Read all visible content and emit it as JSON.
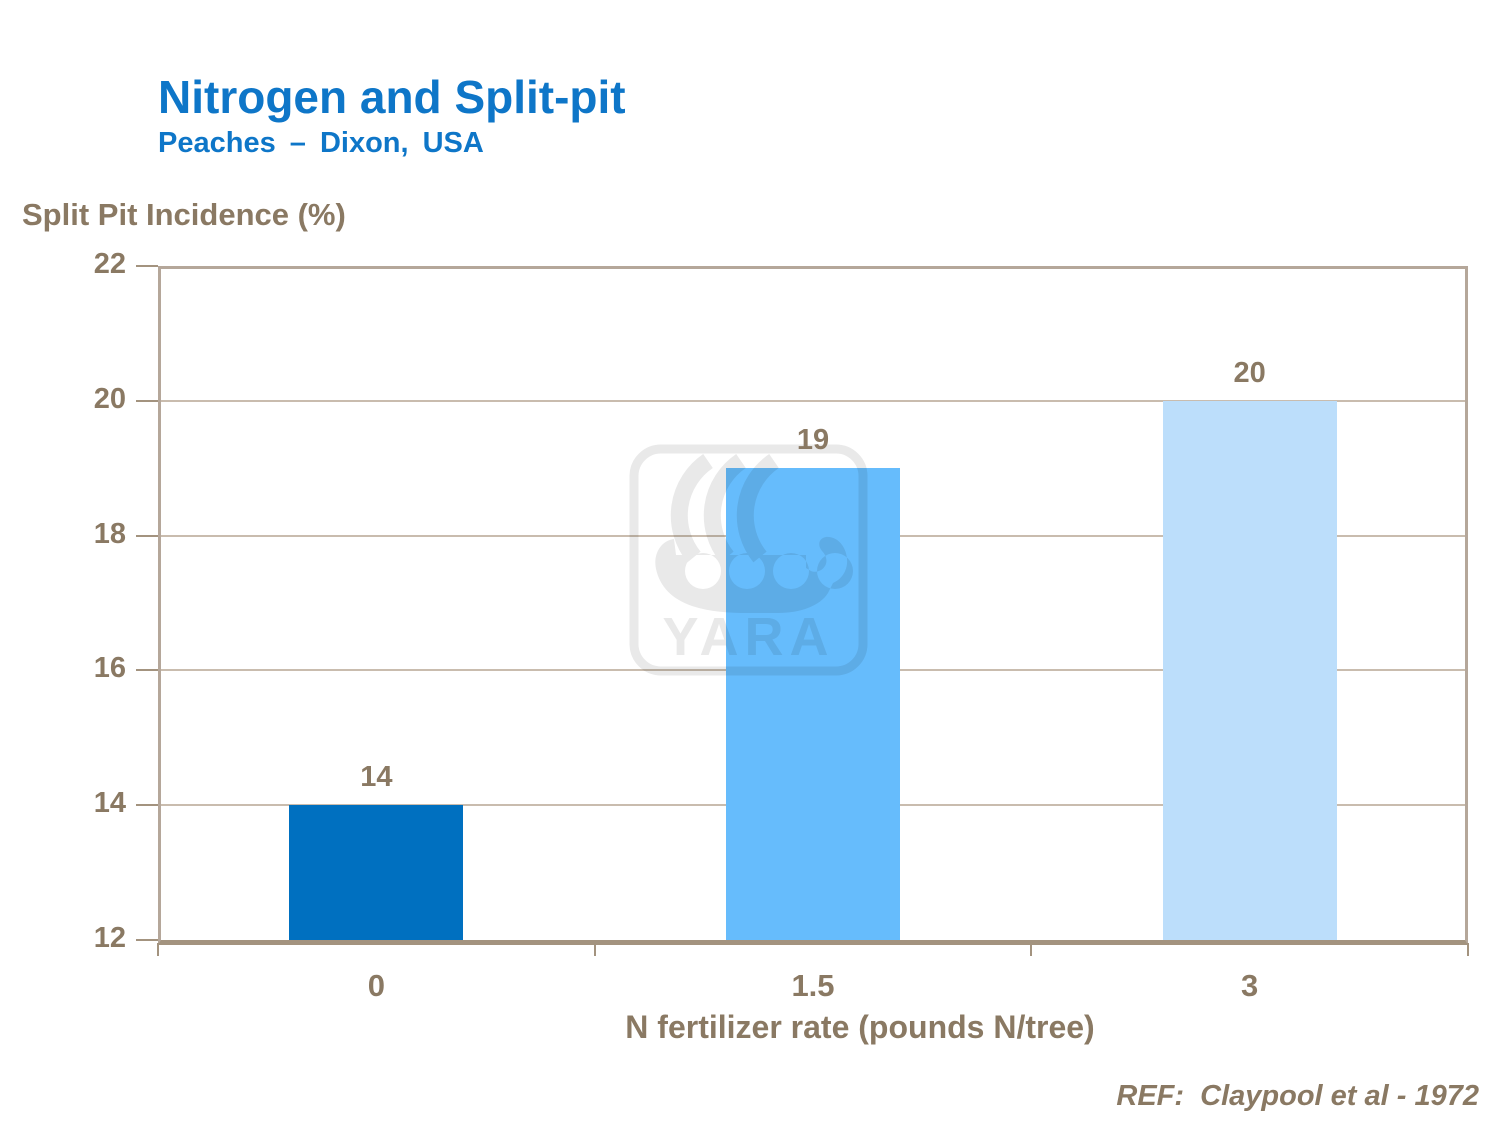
{
  "slide": {
    "title": "Nitrogen and Split-pit",
    "subtitle": "Peaches – Dixon, USA",
    "reference": "REF:  Claypool et al - 1972"
  },
  "colors": {
    "title_blue": "#0E76C8",
    "text_brown": "#8A7963",
    "frame": "#B5A79A",
    "gridline": "#C9BCAE",
    "axis_line": "#A3937F",
    "watermark_gray": "#E9E9E9"
  },
  "watermark": {
    "name": "yara-viking-ship-logo",
    "text": "YARA"
  },
  "chart_data": {
    "type": "bar",
    "title": "Nitrogen and Split-pit — Peaches, Dixon, USA",
    "ylabel": "Split Pit Incidence (%)",
    "xlabel": "N fertilizer rate (pounds N/tree)",
    "categories": [
      "0",
      "1.5",
      "3"
    ],
    "values": [
      14,
      19,
      20
    ],
    "data_labels": [
      "14",
      "19",
      "20"
    ],
    "bar_colors": [
      "#0070C0",
      "#66BCFC",
      "#BCDEFB"
    ],
    "yticks": [
      22,
      20,
      18,
      16,
      14,
      12
    ],
    "ylim": [
      12,
      22
    ],
    "grid": "horizontal-major",
    "legend": "none"
  }
}
